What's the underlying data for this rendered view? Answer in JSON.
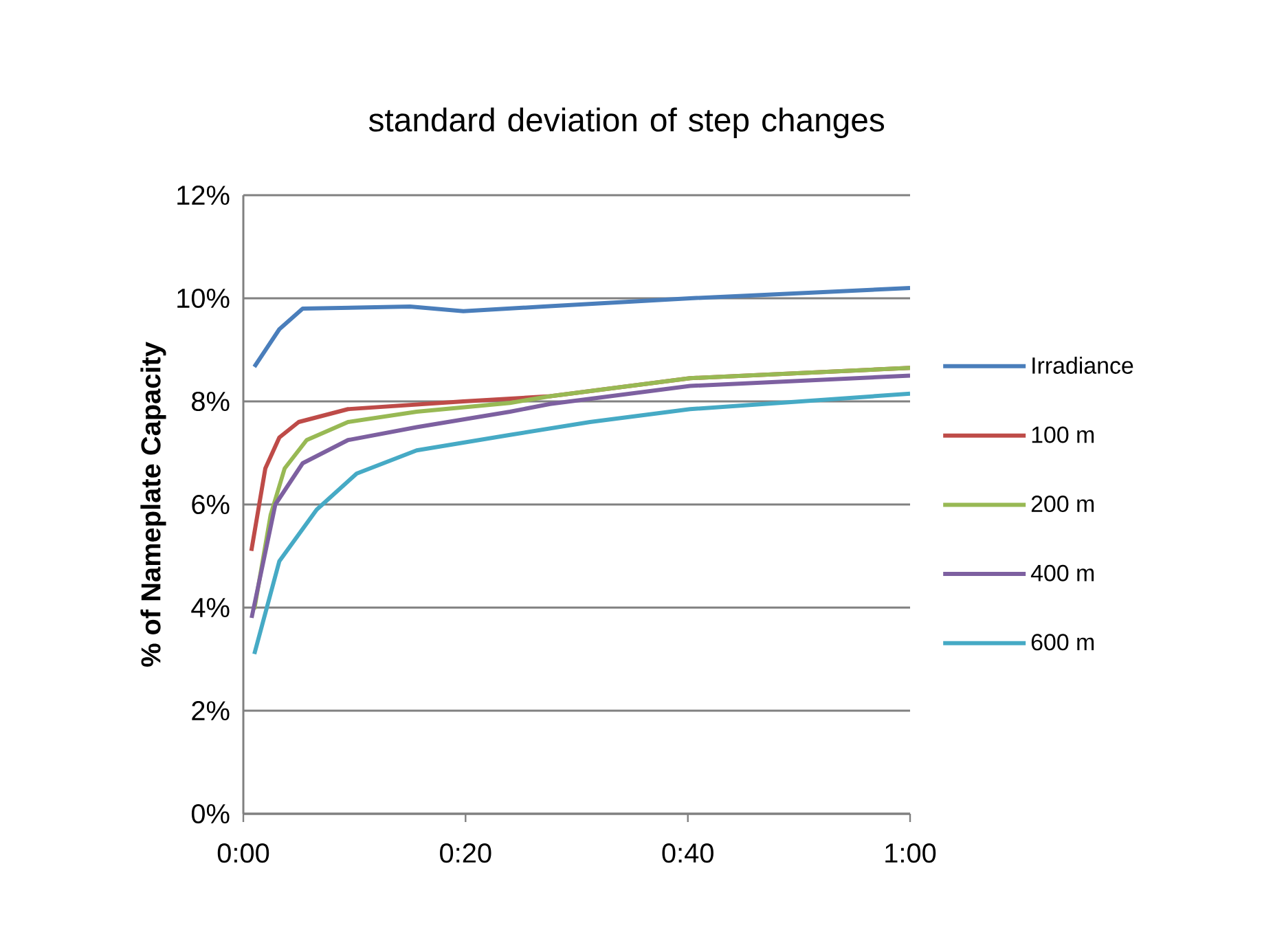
{
  "chart_data": {
    "type": "line",
    "title": "standard deviation of step changes",
    "ylabel": "% of Nameplate Capacity",
    "xlim": [
      0,
      1
    ],
    "xticks": [
      {
        "value": 0,
        "label": "0:00"
      },
      {
        "value": 0.3333,
        "label": "0:20"
      },
      {
        "value": 0.6667,
        "label": "0:40"
      },
      {
        "value": 1,
        "label": "1:00"
      }
    ],
    "ylim": [
      0,
      12
    ],
    "yticks": [
      {
        "value": 0,
        "label": "0%"
      },
      {
        "value": 2,
        "label": "2%"
      },
      {
        "value": 4,
        "label": "4%"
      },
      {
        "value": 6,
        "label": "6%"
      },
      {
        "value": 8,
        "label": "8%"
      },
      {
        "value": 10,
        "label": "10%"
      },
      {
        "value": 12,
        "label": "12%"
      }
    ],
    "grid": "y",
    "legend": "right",
    "marker": "none",
    "line_style": "solid",
    "series": [
      {
        "name": "Irradiance",
        "color": "#4a7ebb",
        "x": [
          0.0165,
          0.054,
          0.089,
          0.25,
          0.33,
          0.45,
          0.67,
          1.0
        ],
        "values": [
          8.67,
          9.4,
          9.8,
          9.84,
          9.75,
          9.84,
          10.0,
          10.2
        ]
      },
      {
        "name": "100 m",
        "color": "#be4b48",
        "x": [
          0.012,
          0.033,
          0.054,
          0.083,
          0.157,
          0.33,
          0.46,
          0.67,
          1.0
        ],
        "values": [
          5.1,
          6.7,
          7.3,
          7.6,
          7.85,
          8.0,
          8.1,
          8.45,
          8.65
        ]
      },
      {
        "name": "200 m",
        "color": "#98b954",
        "x": [
          0.0165,
          0.041,
          0.062,
          0.095,
          0.157,
          0.26,
          0.4,
          0.46,
          0.67,
          1.0
        ],
        "values": [
          3.97,
          5.8,
          6.7,
          7.25,
          7.6,
          7.8,
          7.97,
          8.1,
          8.45,
          8.65
        ]
      },
      {
        "name": "400 m",
        "color": "#7d60a0",
        "x": [
          0.0124,
          0.048,
          0.089,
          0.157,
          0.26,
          0.4,
          0.46,
          0.67,
          1.0
        ],
        "values": [
          3.8,
          6.0,
          6.8,
          7.25,
          7.5,
          7.8,
          7.95,
          8.3,
          8.5
        ]
      },
      {
        "name": "600 m",
        "color": "#46aac5",
        "x": [
          0.0165,
          0.054,
          0.11,
          0.17,
          0.26,
          0.4,
          0.52,
          0.67,
          1.0
        ],
        "values": [
          3.1,
          4.9,
          5.9,
          6.6,
          7.05,
          7.35,
          7.6,
          7.85,
          8.15
        ]
      }
    ]
  }
}
